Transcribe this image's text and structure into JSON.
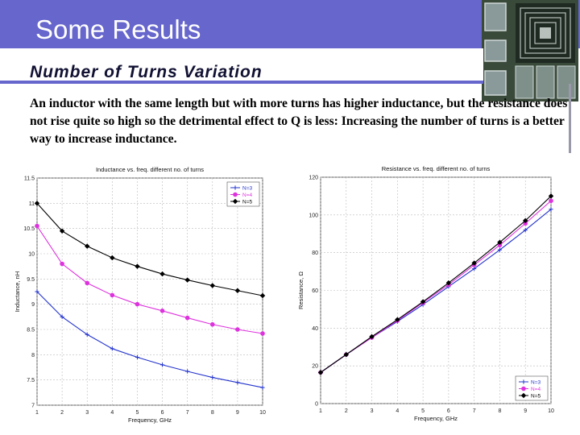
{
  "slide": {
    "title": "Some Results",
    "subtitle": "Number of Turns Variation",
    "body": "An inductor with the same length but with more turns has higher inductance, but the resistance does not rise quite so high so the detrimental effect to Q is less: Increasing the number of turns is a better way to increase inductance.",
    "header_color": "#6666cc"
  },
  "chart_data": [
    {
      "type": "line",
      "title": "Inductance vs. freq. different no. of turns",
      "xlabel": "Frequency, GHz",
      "ylabel": "Inductance, nH",
      "x": [
        1,
        2,
        3,
        4,
        5,
        6,
        7,
        8,
        9,
        10
      ],
      "xlim": [
        1,
        10
      ],
      "ylim": [
        7,
        11.5
      ],
      "xticks": [
        "1",
        "2",
        "3",
        "4",
        "5",
        "6",
        "7",
        "8",
        "9",
        "10"
      ],
      "yticks": [
        "7",
        "7.5",
        "8",
        "8.5",
        "9",
        "9.5",
        "10",
        "10.5",
        "11",
        "11.5"
      ],
      "grid": true,
      "legend_position": "top-right",
      "series": [
        {
          "name": "N=3",
          "color": "#2233cc",
          "marker": "plus",
          "values": [
            9.25,
            8.75,
            8.4,
            8.12,
            7.95,
            7.8,
            7.67,
            7.55,
            7.45,
            7.35
          ]
        },
        {
          "name": "N=4",
          "color": "#dd33dd",
          "marker": "circle",
          "values": [
            10.55,
            9.8,
            9.42,
            9.18,
            9.0,
            8.87,
            8.73,
            8.6,
            8.5,
            8.42
          ]
        },
        {
          "name": "N=5",
          "color": "#000000",
          "marker": "diamond",
          "values": [
            11.0,
            10.45,
            10.15,
            9.92,
            9.75,
            9.6,
            9.48,
            9.37,
            9.27,
            9.17
          ]
        }
      ]
    },
    {
      "type": "line",
      "title": "Resistance vs. freq. different no. of turns",
      "xlabel": "Frequency, GHz",
      "ylabel": "Resistance, Ω",
      "x": [
        1,
        2,
        3,
        4,
        5,
        6,
        7,
        8,
        9,
        10
      ],
      "xlim": [
        1,
        10
      ],
      "ylim": [
        0,
        120
      ],
      "xticks": [
        "1",
        "2",
        "3",
        "4",
        "5",
        "6",
        "7",
        "8",
        "9",
        "10"
      ],
      "yticks": [
        "0",
        "20",
        "40",
        "60",
        "80",
        "100",
        "120"
      ],
      "grid": true,
      "legend_position": "bottom-right",
      "series": [
        {
          "name": "N=3",
          "color": "#2233cc",
          "marker": "plus",
          "values": [
            16.5,
            26,
            35,
            43.5,
            52.5,
            62,
            71.5,
            81.5,
            92,
            103
          ]
        },
        {
          "name": "N=4",
          "color": "#dd33dd",
          "marker": "circle",
          "values": [
            16.5,
            26,
            35,
            44,
            53.5,
            63,
            73.5,
            84,
            95.5,
            107.5
          ]
        },
        {
          "name": "N=5",
          "color": "#000000",
          "marker": "diamond",
          "values": [
            16.5,
            26,
            35.5,
            44.5,
            54,
            64,
            74.5,
            85.5,
            97,
            110
          ]
        }
      ]
    }
  ]
}
